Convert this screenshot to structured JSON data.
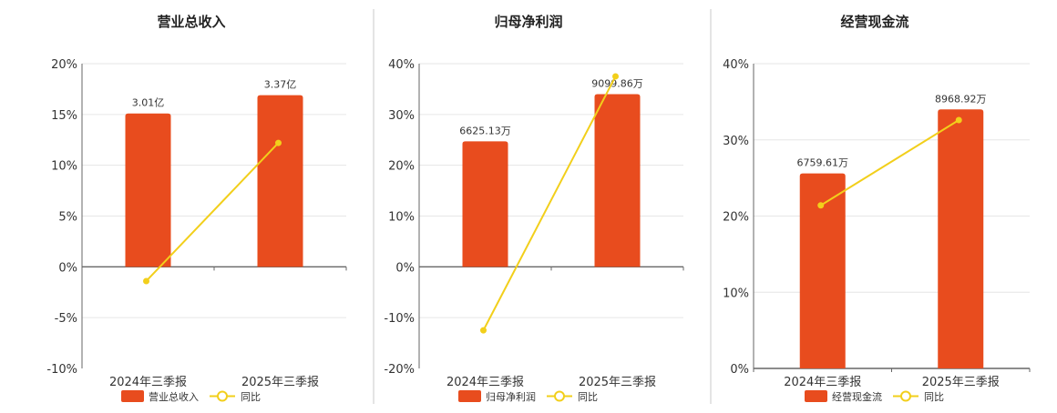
{
  "colors": {
    "bar": "#e84c1e",
    "line": "#f2cf1b",
    "grid": "#e6e6e6",
    "axis": "#666666",
    "divider": "#c8c8c8"
  },
  "chart_data": [
    {
      "type": "bar",
      "title": "营业总收入",
      "categories": [
        "2024年三季报",
        "2025年三季报"
      ],
      "ylim": [
        -10,
        20
      ],
      "yticks": [
        -10,
        -5,
        0,
        5,
        10,
        15,
        20
      ],
      "tick_labels": [
        "-10%",
        "-5%",
        "0%",
        "5%",
        "10%",
        "15%",
        "20%"
      ],
      "series": [
        {
          "name": "营业总收入",
          "kind": "bar",
          "values": [
            15.1,
            16.9
          ],
          "labels": [
            "3.01亿",
            "3.37亿"
          ]
        },
        {
          "name": "同比",
          "kind": "line",
          "values": [
            -1.4,
            12.2
          ]
        }
      ],
      "grid": true,
      "legend": "bottom"
    },
    {
      "type": "bar",
      "title": "归母净利润",
      "categories": [
        "2024年三季报",
        "2025年三季报"
      ],
      "ylim": [
        -20,
        40
      ],
      "yticks": [
        -20,
        -10,
        0,
        10,
        20,
        30,
        40
      ],
      "tick_labels": [
        "-20%",
        "-10%",
        "0%",
        "10%",
        "20%",
        "30%",
        "40%"
      ],
      "series": [
        {
          "name": "归母净利润",
          "kind": "bar",
          "values": [
            24.7,
            34.0
          ],
          "labels": [
            "6625.13万",
            "9099.86万"
          ]
        },
        {
          "name": "同比",
          "kind": "line",
          "values": [
            -12.5,
            37.5
          ]
        }
      ],
      "grid": true,
      "legend": "bottom"
    },
    {
      "type": "bar",
      "title": "经营现金流",
      "categories": [
        "2024年三季报",
        "2025年三季报"
      ],
      "ylim": [
        0,
        40
      ],
      "yticks": [
        0,
        10,
        20,
        30,
        40
      ],
      "tick_labels": [
        "0%",
        "10%",
        "20%",
        "30%",
        "40%"
      ],
      "series": [
        {
          "name": "经营现金流",
          "kind": "bar",
          "values": [
            25.6,
            34.0
          ],
          "labels": [
            "6759.61万",
            "8968.92万"
          ]
        },
        {
          "name": "同比",
          "kind": "line",
          "values": [
            21.4,
            32.6
          ]
        }
      ],
      "grid": true,
      "legend": "bottom"
    }
  ]
}
